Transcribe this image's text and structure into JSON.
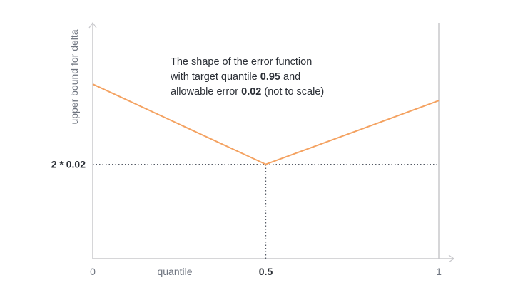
{
  "chart_data": {
    "type": "line",
    "title": "",
    "xlabel": "quantile",
    "ylabel": "upper bound for delta",
    "xlim": [
      0,
      1
    ],
    "ylim": [
      0,
      0.1
    ],
    "x_ticks": [
      {
        "value": 0,
        "label": "0",
        "emphasis": false
      },
      {
        "value": 0.5,
        "label": "0.5",
        "emphasis": true
      },
      {
        "value": 1,
        "label": "1",
        "emphasis": false
      }
    ],
    "y_ticks": [
      {
        "value": 0.04,
        "label": "2 * 0.02",
        "emphasis": true
      }
    ],
    "series": [
      {
        "color": "#f4a261",
        "points": [
          {
            "x": 0,
            "y": 0.074
          },
          {
            "x": 0.5,
            "y": 0.04
          },
          {
            "x": 1,
            "y": 0.067
          }
        ]
      }
    ],
    "guides": [
      {
        "kind": "horizontal",
        "y": 0.04,
        "x_from": 0,
        "x_to": 1
      },
      {
        "kind": "vertical",
        "x": 0.5,
        "y_from": 0,
        "y_to": 0.04
      }
    ],
    "annotation": {
      "lines": [
        [
          {
            "text": "The shape of the error function",
            "bold": false
          }
        ],
        [
          {
            "text": "with target quantile ",
            "bold": false
          },
          {
            "text": "0.95",
            "bold": true
          },
          {
            "text": " and",
            "bold": false
          }
        ],
        [
          {
            "text": "allowable error ",
            "bold": false
          },
          {
            "text": "0.02",
            "bold": true
          },
          {
            "text": " (not to scale)",
            "bold": false
          }
        ]
      ]
    },
    "colors": {
      "axis": "#c8c8cc",
      "guide": "#555b66",
      "line": "#f4a261"
    },
    "grid": false
  }
}
